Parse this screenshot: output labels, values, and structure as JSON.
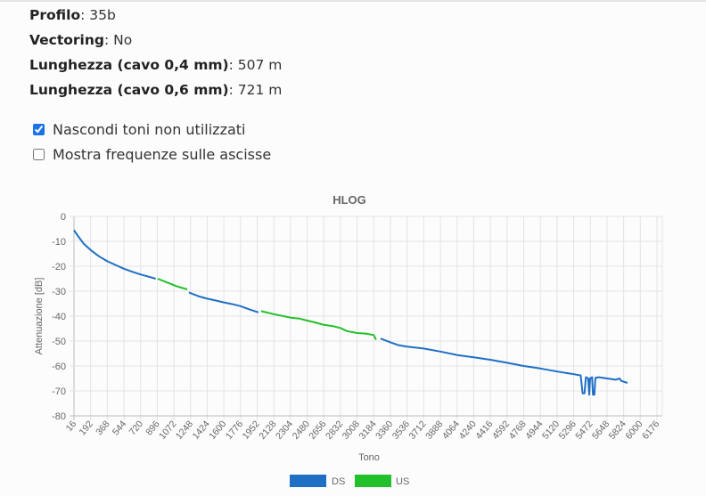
{
  "info": [
    {
      "label": "Profilo",
      "value": "35b"
    },
    {
      "label": "Vectoring",
      "value": "No"
    },
    {
      "label": "Lunghezza (cavo 0,4 mm)",
      "value": "507 m"
    },
    {
      "label": "Lunghezza (cavo 0,6 mm)",
      "value": "721 m"
    }
  ],
  "options": [
    {
      "label": "Nascondi toni non utilizzati",
      "checked": true
    },
    {
      "label": "Mostra frequenze sulle ascisse",
      "checked": false
    }
  ],
  "chart_data": {
    "type": "line",
    "title": "HLOG",
    "xlabel": "Tono",
    "ylabel": "Attenuazione [dB]",
    "xlim": [
      16,
      6176
    ],
    "ylim": [
      -80,
      0
    ],
    "grid": true,
    "legend_placement": "bottom-center",
    "x_ticks": [
      "16",
      "192",
      "368",
      "544",
      "720",
      "896",
      "1072",
      "1248",
      "1424",
      "1600",
      "1776",
      "1952",
      "2128",
      "2304",
      "2480",
      "2656",
      "2832",
      "3008",
      "3184",
      "3360",
      "3536",
      "3712",
      "3888",
      "4064",
      "4240",
      "4416",
      "4592",
      "4768",
      "4944",
      "5120",
      "5296",
      "5472",
      "5648",
      "5824",
      "6000",
      "6176"
    ],
    "y_ticks": [
      "0",
      "-10",
      "-20",
      "-30",
      "-40",
      "-50",
      "-60",
      "-70",
      "-80"
    ],
    "series": [
      {
        "name": "DS",
        "color": "#1f6fc5",
        "segments": [
          [
            [
              16,
              -5.5
            ],
            [
              60,
              -8
            ],
            [
              120,
              -11
            ],
            [
              192,
              -13.5
            ],
            [
              280,
              -16
            ],
            [
              368,
              -18
            ],
            [
              456,
              -19.5
            ],
            [
              544,
              -21
            ],
            [
              632,
              -22.2
            ],
            [
              720,
              -23.3
            ],
            [
              808,
              -24.2
            ],
            [
              880,
              -25
            ]
          ],
          [
            [
              1230,
              -30.5
            ],
            [
              1330,
              -32
            ],
            [
              1424,
              -33
            ],
            [
              1520,
              -33.8
            ],
            [
              1600,
              -34.5
            ],
            [
              1700,
              -35.3
            ],
            [
              1776,
              -36
            ],
            [
              1870,
              -37.3
            ],
            [
              1965,
              -38.5
            ]
          ],
          [
            [
              3255,
              -49
            ],
            [
              3360,
              -50.5
            ],
            [
              3450,
              -51.7
            ],
            [
              3536,
              -52.2
            ],
            [
              3712,
              -53
            ],
            [
              3888,
              -54.2
            ],
            [
              4064,
              -55.6
            ],
            [
              4240,
              -56.5
            ],
            [
              4416,
              -57.5
            ],
            [
              4592,
              -58.7
            ],
            [
              4768,
              -60
            ],
            [
              4944,
              -61
            ],
            [
              5120,
              -62.2
            ],
            [
              5296,
              -63.3
            ],
            [
              5370,
              -63.8
            ],
            [
              5390,
              -71
            ],
            [
              5410,
              -71
            ],
            [
              5425,
              -64.5
            ],
            [
              5450,
              -65
            ],
            [
              5460,
              -71.5
            ],
            [
              5470,
              -65
            ],
            [
              5490,
              -64.5
            ],
            [
              5500,
              -71.5
            ],
            [
              5515,
              -71.5
            ],
            [
              5525,
              -64.8
            ],
            [
              5560,
              -64.5
            ],
            [
              5648,
              -65
            ],
            [
              5740,
              -65.5
            ],
            [
              5780,
              -65
            ],
            [
              5800,
              -66
            ],
            [
              5864,
              -66.8
            ]
          ]
        ]
      },
      {
        "name": "US",
        "color": "#22c02a",
        "segments": [
          [
            [
              900,
              -25
            ],
            [
              1000,
              -26.5
            ],
            [
              1100,
              -28
            ],
            [
              1212,
              -29.3
            ]
          ],
          [
            [
              1993,
              -38
            ],
            [
              2128,
              -39.2
            ],
            [
              2304,
              -40.6
            ],
            [
              2400,
              -41
            ],
            [
              2480,
              -41.8
            ],
            [
              2560,
              -42.5
            ],
            [
              2656,
              -43.5
            ],
            [
              2750,
              -44
            ],
            [
              2832,
              -44.8
            ],
            [
              2900,
              -46
            ],
            [
              3008,
              -46.8
            ],
            [
              3100,
              -47
            ],
            [
              3184,
              -47.6
            ],
            [
              3208,
              -49.5
            ]
          ]
        ]
      }
    ]
  }
}
